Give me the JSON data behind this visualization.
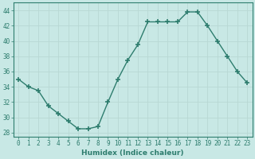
{
  "x": [
    0,
    1,
    2,
    3,
    4,
    5,
    6,
    7,
    8,
    9,
    10,
    11,
    12,
    13,
    14,
    15,
    16,
    17,
    18,
    19,
    20,
    21,
    22,
    23
  ],
  "y": [
    35,
    34,
    33.5,
    31.5,
    30.5,
    29.5,
    28.5,
    28.5,
    28.8,
    32,
    35,
    37.5,
    39.5,
    42.5,
    42.5,
    42.5,
    42.5,
    43.8,
    43.8,
    42,
    40,
    38,
    36,
    34.5
  ],
  "line_color": "#2e7d6e",
  "marker": "+",
  "marker_size": 4,
  "marker_linewidth": 1.2,
  "bg_color": "#c8e8e5",
  "grid_color": "#b8d8d4",
  "xlabel": "Humidex (Indice chaleur)",
  "xlim": [
    -0.5,
    23.5
  ],
  "ylim": [
    27.5,
    45.0
  ],
  "yticks": [
    28,
    30,
    32,
    34,
    36,
    38,
    40,
    42,
    44
  ],
  "xticks": [
    0,
    1,
    2,
    3,
    4,
    5,
    6,
    7,
    8,
    9,
    10,
    11,
    12,
    13,
    14,
    15,
    16,
    17,
    18,
    19,
    20,
    21,
    22,
    23
  ],
  "tick_label_size": 5.5,
  "xlabel_size": 6.5,
  "axis_color": "#2e7d6e",
  "line_width": 1.0
}
